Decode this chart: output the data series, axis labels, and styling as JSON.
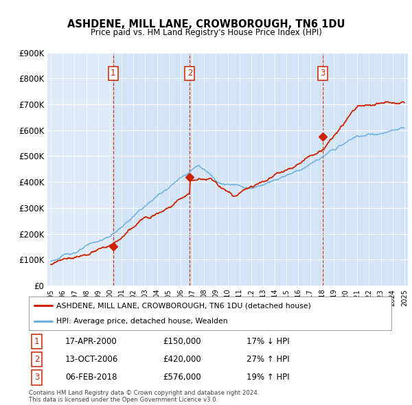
{
  "title": "ASHDENE, MILL LANE, CROWBOROUGH, TN6 1DU",
  "subtitle": "Price paid vs. HM Land Registry's House Price Index (HPI)",
  "ylim": [
    0,
    900000
  ],
  "yticks": [
    0,
    100000,
    200000,
    300000,
    400000,
    500000,
    600000,
    700000,
    800000,
    900000
  ],
  "ytick_labels": [
    "£0",
    "£100K",
    "£200K",
    "£300K",
    "£400K",
    "£500K",
    "£600K",
    "£700K",
    "£800K",
    "£900K"
  ],
  "xlim_start": 1994.7,
  "xlim_end": 2025.3,
  "sale_dates": [
    2000.29,
    2006.79,
    2018.09
  ],
  "sale_prices": [
    150000,
    420000,
    576000
  ],
  "sale_labels": [
    "1",
    "2",
    "3"
  ],
  "sale_date_strs": [
    "17-APR-2000",
    "13-OCT-2006",
    "06-FEB-2018"
  ],
  "sale_price_strs": [
    "£150,000",
    "£420,000",
    "£576,000"
  ],
  "sale_hpi_strs": [
    "17% ↓ HPI",
    "27% ↑ HPI",
    "19% ↑ HPI"
  ],
  "line_color_red": "#cc2200",
  "line_color_blue": "#6ab0e0",
  "background_color": "#deeaf7",
  "legend_label_red": "ASHDENE, MILL LANE, CROWBOROUGH, TN6 1DU (detached house)",
  "legend_label_blue": "HPI: Average price, detached house, Wealden",
  "footer_text": "Contains HM Land Registry data © Crown copyright and database right 2024.\nThis data is licensed under the Open Government Licence v3.0."
}
